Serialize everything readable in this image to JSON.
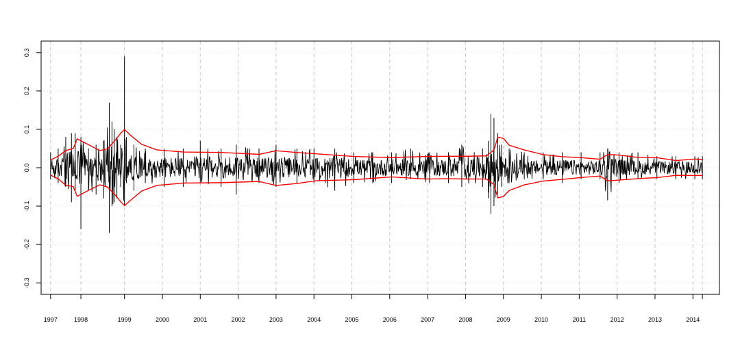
{
  "chart_data": {
    "type": "line",
    "title": "",
    "xlabel": "",
    "ylabel": "",
    "x_range": [
      1996.75,
      2014.65
    ],
    "ylim": [
      -0.33,
      0.33
    ],
    "x_ticks": [
      {
        "value": 1997.0,
        "label": "1997"
      },
      {
        "value": 1997.8,
        "label": "1998"
      },
      {
        "value": 1998.95,
        "label": "1999"
      },
      {
        "value": 1999.95,
        "label": "2000"
      },
      {
        "value": 2000.95,
        "label": "2001"
      },
      {
        "value": 2001.95,
        "label": "2002"
      },
      {
        "value": 2002.95,
        "label": "2003"
      },
      {
        "value": 2003.95,
        "label": "2004"
      },
      {
        "value": 2004.95,
        "label": "2005"
      },
      {
        "value": 2005.95,
        "label": "2006"
      },
      {
        "value": 2006.95,
        "label": "2007"
      },
      {
        "value": 2007.95,
        "label": "2008"
      },
      {
        "value": 2008.95,
        "label": "2009"
      },
      {
        "value": 2009.95,
        "label": "2010"
      },
      {
        "value": 2010.95,
        "label": "2011"
      },
      {
        "value": 2011.95,
        "label": "2012"
      },
      {
        "value": 2012.95,
        "label": "2013"
      },
      {
        "value": 2013.95,
        "label": "2014"
      },
      {
        "value": 2014.2,
        "label": ""
      }
    ],
    "y_ticks": [
      {
        "value": -0.3,
        "label": "-0.3"
      },
      {
        "value": -0.2,
        "label": "-0.2"
      },
      {
        "value": -0.1,
        "label": "-0.1"
      },
      {
        "value": 0.0,
        "label": "0.0"
      },
      {
        "value": 0.1,
        "label": "0.1"
      },
      {
        "value": 0.2,
        "label": "0.2"
      },
      {
        "value": 0.3,
        "label": "0.3"
      }
    ],
    "grid": true,
    "series": [
      {
        "role": "returns",
        "color": "#000000",
        "x": [
          1997.0,
          1997.2,
          1997.4,
          1997.55,
          1997.65,
          1997.8,
          1998.0,
          1998.2,
          1998.4,
          1998.55,
          1998.62,
          1998.68,
          1998.75,
          1998.85,
          1998.95,
          1999.0,
          1999.2,
          1999.5,
          2000.0,
          2000.5,
          2000.95,
          2001.5,
          2001.9,
          2002.5,
          2002.95,
          2003.5,
          2003.95,
          2004.5,
          2005.0,
          2005.5,
          2006.0,
          2006.5,
          2007.0,
          2007.5,
          2007.85,
          2008.4,
          2008.55,
          2008.62,
          2008.7,
          2008.8,
          2008.9,
          2009.1,
          2009.5,
          2010.0,
          2010.5,
          2011.0,
          2011.5,
          2011.7,
          2012.0,
          2012.5,
          2013.0,
          2013.5,
          2014.0,
          2014.2
        ],
        "low": [
          -0.03,
          -0.04,
          -0.05,
          -0.09,
          -0.06,
          -0.16,
          -0.06,
          -0.07,
          -0.08,
          -0.17,
          -0.1,
          -0.09,
          -0.08,
          -0.05,
          -0.1,
          -0.04,
          -0.06,
          -0.04,
          -0.05,
          -0.05,
          -0.04,
          -0.05,
          -0.07,
          -0.04,
          -0.05,
          -0.04,
          -0.04,
          -0.06,
          -0.04,
          -0.04,
          -0.04,
          -0.03,
          -0.04,
          -0.04,
          -0.05,
          -0.05,
          -0.08,
          -0.12,
          -0.1,
          -0.07,
          -0.05,
          -0.04,
          -0.03,
          -0.03,
          -0.04,
          -0.03,
          -0.03,
          -0.085,
          -0.04,
          -0.03,
          -0.03,
          -0.03,
          -0.03,
          -0.03
        ],
        "high": [
          0.04,
          0.05,
          0.08,
          0.09,
          0.09,
          0.08,
          0.05,
          0.06,
          0.07,
          0.17,
          0.12,
          0.1,
          0.08,
          0.06,
          0.29,
          0.08,
          0.06,
          0.05,
          0.05,
          0.05,
          0.07,
          0.05,
          0.06,
          0.05,
          0.06,
          0.05,
          0.05,
          0.05,
          0.04,
          0.04,
          0.04,
          0.05,
          0.04,
          0.04,
          0.06,
          0.05,
          0.07,
          0.14,
          0.13,
          0.09,
          0.06,
          0.05,
          0.04,
          0.04,
          0.04,
          0.04,
          0.04,
          0.05,
          0.04,
          0.04,
          0.03,
          0.03,
          0.03,
          0.03
        ]
      },
      {
        "role": "upper-band",
        "color": "#ff0000",
        "x": [
          1997.0,
          1997.2,
          1997.4,
          1997.6,
          1997.7,
          1998.0,
          1998.3,
          1998.5,
          1998.7,
          1998.85,
          1998.95,
          1999.1,
          1999.4,
          1999.8,
          2000.5,
          2001.5,
          2002.5,
          2002.95,
          2003.5,
          2004.0,
          2005.0,
          2006.0,
          2006.9,
          2007.5,
          2008.0,
          2008.5,
          2008.7,
          2008.8,
          2008.95,
          2009.1,
          2009.5,
          2010.0,
          2010.5,
          2011.0,
          2011.5,
          2011.7,
          2012.0,
          2012.5,
          2013.0,
          2013.5,
          2014.0,
          2014.2
        ],
        "values": [
          0.02,
          0.03,
          0.045,
          0.05,
          0.075,
          0.06,
          0.045,
          0.05,
          0.07,
          0.09,
          0.1,
          0.085,
          0.06,
          0.045,
          0.04,
          0.04,
          0.035,
          0.045,
          0.04,
          0.035,
          0.03,
          0.025,
          0.03,
          0.03,
          0.03,
          0.03,
          0.045,
          0.08,
          0.075,
          0.06,
          0.045,
          0.035,
          0.03,
          0.025,
          0.022,
          0.035,
          0.032,
          0.028,
          0.025,
          0.02,
          0.022,
          0.022
        ]
      },
      {
        "role": "lower-band",
        "color": "#ff0000",
        "x": [
          1997.0,
          1997.2,
          1997.4,
          1997.6,
          1997.7,
          1998.0,
          1998.3,
          1998.5,
          1998.7,
          1998.85,
          1998.95,
          1999.1,
          1999.4,
          1999.8,
          2000.5,
          2001.5,
          2002.5,
          2002.95,
          2003.5,
          2004.0,
          2005.0,
          2006.0,
          2006.9,
          2007.5,
          2008.0,
          2008.5,
          2008.7,
          2008.8,
          2008.95,
          2009.1,
          2009.5,
          2010.0,
          2010.5,
          2011.0,
          2011.5,
          2011.7,
          2012.0,
          2012.5,
          2013.0,
          2013.5,
          2014.0,
          2014.2
        ],
        "values": [
          -0.02,
          -0.03,
          -0.045,
          -0.05,
          -0.075,
          -0.06,
          -0.045,
          -0.05,
          -0.07,
          -0.09,
          -0.1,
          -0.085,
          -0.06,
          -0.045,
          -0.04,
          -0.04,
          -0.035,
          -0.045,
          -0.04,
          -0.035,
          -0.03,
          -0.025,
          -0.03,
          -0.03,
          -0.03,
          -0.03,
          -0.045,
          -0.08,
          -0.075,
          -0.06,
          -0.045,
          -0.035,
          -0.03,
          -0.025,
          -0.022,
          -0.035,
          -0.032,
          -0.028,
          -0.025,
          -0.02,
          -0.02,
          -0.02
        ]
      }
    ]
  }
}
